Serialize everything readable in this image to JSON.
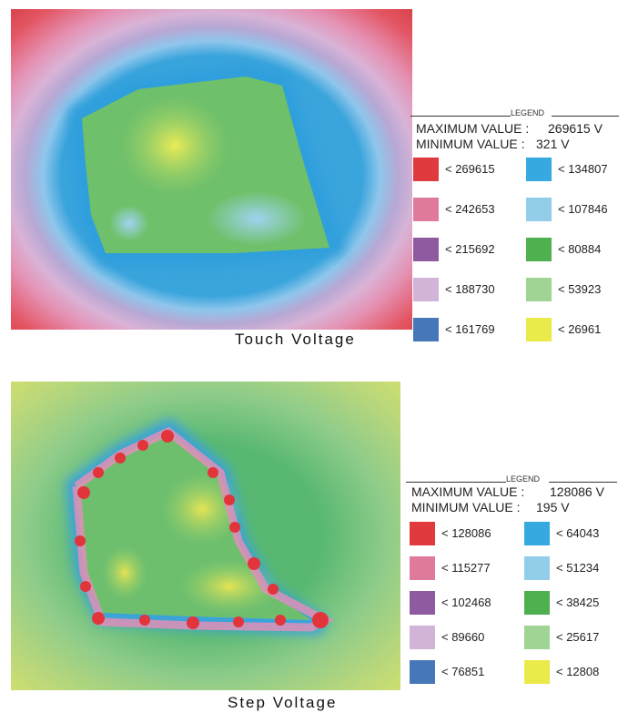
{
  "touch": {
    "caption": "Touch Voltage",
    "legend_title": "LEGEND",
    "max_label": "MAXIMUM VALUE :",
    "max_value": "269615 V",
    "min_label": "MINIMUM VALUE :",
    "min_value": "321 V",
    "left": [
      {
        "label": "< 269615",
        "color": "#e03a3e"
      },
      {
        "label": "< 242653",
        "color": "#e07a9a"
      },
      {
        "label": "< 215692",
        "color": "#8e5aa0"
      },
      {
        "label": "< 188730",
        "color": "#d2b4d8"
      },
      {
        "label": "< 161769",
        "color": "#4677b8"
      }
    ],
    "right": [
      {
        "label": "< 134807",
        "color": "#35a9e0"
      },
      {
        "label": "< 107846",
        "color": "#92cdea"
      },
      {
        "label": "< 80884",
        "color": "#4fb04f"
      },
      {
        "label": "< 53923",
        "color": "#9fd494"
      },
      {
        "label": "< 26961",
        "color": "#eaea4a"
      }
    ]
  },
  "step": {
    "caption": "Step Voltage",
    "legend_title": "LEGEND",
    "max_label": "MAXIMUM VALUE :",
    "max_value": "128086 V",
    "min_label": "MINIMUM VALUE :",
    "min_value": "195 V",
    "left": [
      {
        "label": "< 128086",
        "color": "#e03a3e"
      },
      {
        "label": "< 115277",
        "color": "#e07a9a"
      },
      {
        "label": "< 102468",
        "color": "#8e5aa0"
      },
      {
        "label": "< 89660",
        "color": "#d2b4d8"
      },
      {
        "label": "< 76851",
        "color": "#4677b8"
      }
    ],
    "right": [
      {
        "label": "< 64043",
        "color": "#35a9e0"
      },
      {
        "label": "< 51234",
        "color": "#92cdea"
      },
      {
        "label": "< 38425",
        "color": "#4fb04f"
      },
      {
        "label": "< 25617",
        "color": "#9fd494"
      },
      {
        "label": "< 12808",
        "color": "#eaea4a"
      }
    ]
  }
}
